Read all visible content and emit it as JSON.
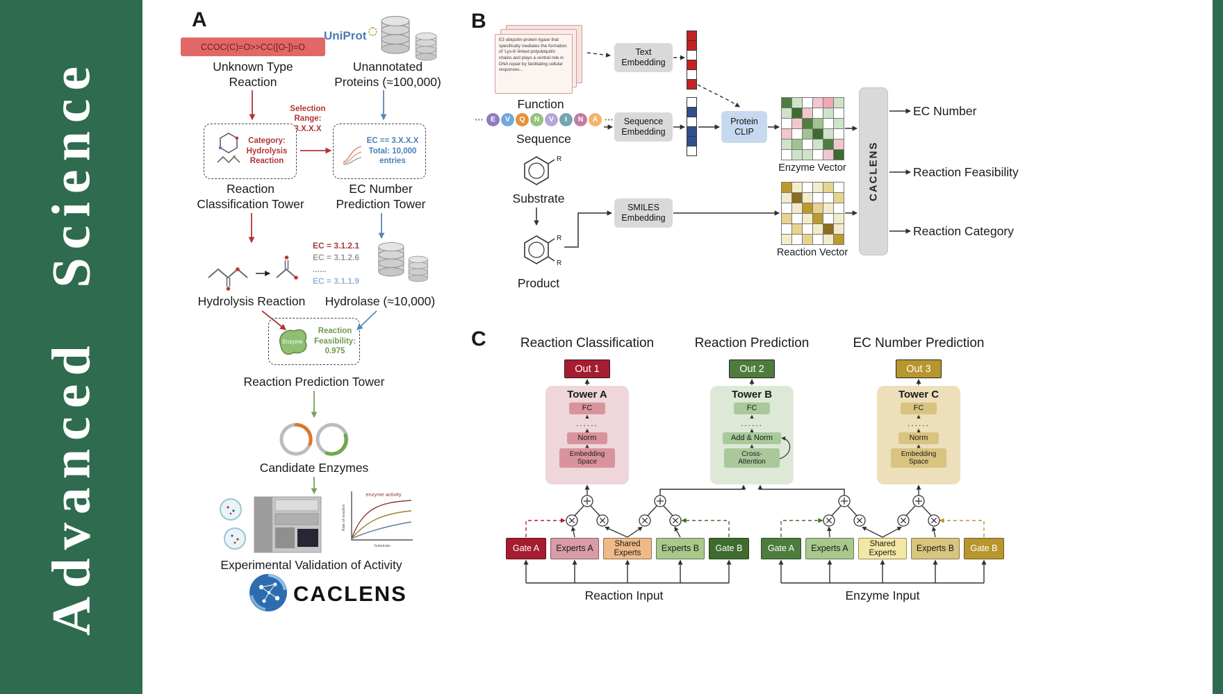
{
  "journal": {
    "name": "Advanced Science"
  },
  "colors": {
    "banner_green": "#2f6b4f",
    "arrow_red": "#b23434",
    "arrow_blue": "#5b86b5",
    "arrow_green": "#75a356",
    "gate_a_red": "#a61c30",
    "gate_b_green": "#3f6b2e",
    "gate_gold": "#b8962e",
    "tower_a_pink": "#eed6da",
    "tower_b_green": "#dde9d6",
    "tower_c_tan": "#ecdfb9"
  },
  "panelA": {
    "label": "A",
    "smiles": "CCOC(C)=O>>CC([O-])=O",
    "unknown_reaction": "Unknown Type\nReaction",
    "uniprot": "UniProt",
    "unannotated": "Unannotated\nProteins (≈100,000)",
    "selection_range": "Selection\nRange:\n3.X.X.X",
    "classification_box": "Category:\nHydrolysis\nReaction",
    "ec_box": "EC == 3.X.X.X\nTotal: 10,000\nentries",
    "classification_tower": "Reaction\nClassification Tower",
    "ec_tower": "EC Number\nPrediction Tower",
    "hydrolysis_reaction": "Hydrolysis Reaction",
    "ec_list": [
      "EC = 3.1.2.1",
      "EC = 3.1.2.6",
      "......",
      "EC = 3.1.1.9"
    ],
    "hydrolase": "Hydrolase (≈10,000)",
    "enzyme_label": "Enzyme",
    "feasibility": "Reaction\nFeasibility:\n0.975",
    "prediction_tower": "Reaction Prediction Tower",
    "candidate_enzymes": "Candidate Enzymes",
    "validation": "Experimental Validation of Activity",
    "plot": {
      "title": "enzyme activity",
      "xlabel": "Substrate",
      "ylabel": "Rate of reaction"
    },
    "caclens_wordmark": "CACLENS"
  },
  "panelB": {
    "label": "B",
    "function_text": "E3 ubiquitin-protein ligase that specifically mediates the formation of 'Lys-6'-linked polyubiquitin chains and plays a central role in DNA repair by facilitating cellular responses...",
    "function_label": "Function",
    "ellipsis": "···",
    "sequence_letters": [
      "E",
      "V",
      "Q",
      "N",
      "V",
      "I",
      "N",
      "A"
    ],
    "sequence_colors": [
      "#8e7cc3",
      "#6fa8dc",
      "#e69138",
      "#93c47d",
      "#b4a7d6",
      "#76a5af",
      "#c27ba0",
      "#f6b26b"
    ],
    "sequence_label": "Sequence",
    "substrate_label": "Substrate",
    "product_label": "Product",
    "r_label": "R",
    "text_embedding": "Text\nEmbedding",
    "sequence_embedding": "Sequence\nEmbedding",
    "smiles_embedding": "SMILES\nEmbedding",
    "protein_clip": "Protein\nCLIP",
    "enzyme_vector_label": "Enzyme Vector",
    "reaction_vector_label": "Reaction Vector",
    "caclens_label": "CACLENS",
    "outputs": [
      "EC Number",
      "Reaction Feasibility",
      "Reaction Category"
    ],
    "text_vector_cells": [
      "#c32222",
      "#c32222",
      "#ffffff",
      "#c32222",
      "#ffffff",
      "#c32222"
    ],
    "seq_vector_cells": [
      "#ffffff",
      "#31508e",
      "#ffffff",
      "#31508e",
      "#31508e",
      "#ffffff"
    ],
    "enzyme_grid": [
      [
        "#4e7d3f",
        "#cfe3c8",
        "#ffffff",
        "#f2c6ce",
        "#f4a7b3",
        "#cfe3c8"
      ],
      [
        "#cfe3c8",
        "#3f6b2e",
        "#f2c6ce",
        "#ffffff",
        "#cfe3c8",
        "#ffffff"
      ],
      [
        "#ffffff",
        "#f2c6ce",
        "#4e7d3f",
        "#9fc491",
        "#ffffff",
        "#cfe3c8"
      ],
      [
        "#f2c6ce",
        "#ffffff",
        "#9fc491",
        "#3f6b2e",
        "#cfe3c8",
        "#ffffff"
      ],
      [
        "#cfe3c8",
        "#9fc491",
        "#ffffff",
        "#cfe3c8",
        "#4e7d3f",
        "#f2c6ce"
      ],
      [
        "#ffffff",
        "#cfe3c8",
        "#cfe3c8",
        "#ffffff",
        "#f2c6ce",
        "#3f6b2e"
      ]
    ],
    "reaction_grid": [
      [
        "#bc9a2f",
        "#f3ecca",
        "#ffffff",
        "#f3ecca",
        "#e6d48e",
        "#ffffff"
      ],
      [
        "#f3ecca",
        "#8a6d1f",
        "#f3ecca",
        "#ffffff",
        "#ffffff",
        "#e6d48e"
      ],
      [
        "#ffffff",
        "#f3ecca",
        "#bc9a2f",
        "#e6d48e",
        "#f3ecca",
        "#ffffff"
      ],
      [
        "#e6d48e",
        "#ffffff",
        "#f3ecca",
        "#bc9a2f",
        "#ffffff",
        "#f3ecca"
      ],
      [
        "#ffffff",
        "#e6d48e",
        "#ffffff",
        "#f3ecca",
        "#8a6d1f",
        "#f3ecca"
      ],
      [
        "#f3ecca",
        "#ffffff",
        "#e6d48e",
        "#ffffff",
        "#f3ecca",
        "#bc9a2f"
      ]
    ]
  },
  "panelC": {
    "label": "C",
    "headers": [
      "Reaction Classification",
      "Reaction Prediction",
      "EC Number Prediction"
    ],
    "outs": [
      "Out 1",
      "Out 2",
      "Out 3"
    ],
    "towers": [
      {
        "title": "Tower A",
        "fc": "FC",
        "dots": "......",
        "norm": "Norm",
        "bottom": "Embedding\nSpace"
      },
      {
        "title": "Tower B",
        "fc": "FC",
        "dots": "......",
        "norm": "Add & Norm",
        "bottom": "Cross-\nAttention"
      },
      {
        "title": "Tower C",
        "fc": "FC",
        "dots": "......",
        "norm": "Norm",
        "bottom": "Embedding\nSpace"
      }
    ],
    "reaction_experts": [
      "Gate A",
      "Experts A",
      "Shared\nExperts",
      "Experts B",
      "Gate B"
    ],
    "enzyme_experts": [
      "Gate A",
      "Experts A",
      "Shared\nExperts",
      "Experts B",
      "Gate B"
    ],
    "inputs": [
      "Reaction Input",
      "Enzyme Input"
    ]
  }
}
